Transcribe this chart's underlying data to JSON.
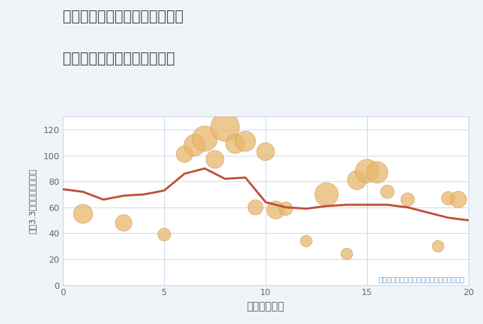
{
  "title_line1": "愛知県稲沢市祖父江町甲新田の",
  "title_line2": "駅距離別中古マンション価格",
  "xlabel": "駅距離（分）",
  "ylabel": "坪（3.3㎡）単価（万円）",
  "annotation": "円の大きさは、取引のあった物件面積を示す",
  "xlim": [
    0,
    20
  ],
  "ylim": [
    0,
    130
  ],
  "yticks": [
    0,
    20,
    40,
    60,
    80,
    100,
    120
  ],
  "xticks": [
    0,
    5,
    10,
    15,
    20
  ],
  "background_color": "#f0f4f8",
  "plot_bg_color": "#ffffff",
  "scatter_color": "#E8B86D",
  "scatter_alpha": 0.75,
  "scatter_edgecolor": "#c8924a",
  "line_color": "#c0503a",
  "line_width": 2.2,
  "scatter_x": [
    1,
    3,
    5,
    6,
    6.5,
    7,
    7.5,
    8,
    8.5,
    9,
    9.5,
    10,
    10.5,
    11,
    12,
    13,
    14,
    14.5,
    15,
    15.5,
    16,
    17,
    18.5,
    19,
    19.5
  ],
  "scatter_y": [
    55,
    48,
    39,
    101,
    108,
    113,
    97,
    122,
    109,
    111,
    60,
    103,
    58,
    59,
    34,
    70,
    24,
    81,
    88,
    87,
    72,
    66,
    30,
    67,
    66
  ],
  "scatter_size": [
    400,
    300,
    180,
    300,
    500,
    700,
    350,
    900,
    400,
    450,
    250,
    350,
    350,
    200,
    150,
    600,
    150,
    400,
    600,
    500,
    200,
    200,
    150,
    200,
    300
  ],
  "line_x": [
    0,
    1,
    2,
    3,
    4,
    5,
    6,
    7,
    8,
    9,
    10,
    11,
    12,
    13,
    14,
    15,
    16,
    17,
    18,
    19,
    20
  ],
  "line_y": [
    74,
    72,
    66,
    69,
    70,
    73,
    86,
    90,
    82,
    83,
    64,
    60,
    59,
    61,
    62,
    62,
    62,
    60,
    56,
    52,
    50
  ]
}
